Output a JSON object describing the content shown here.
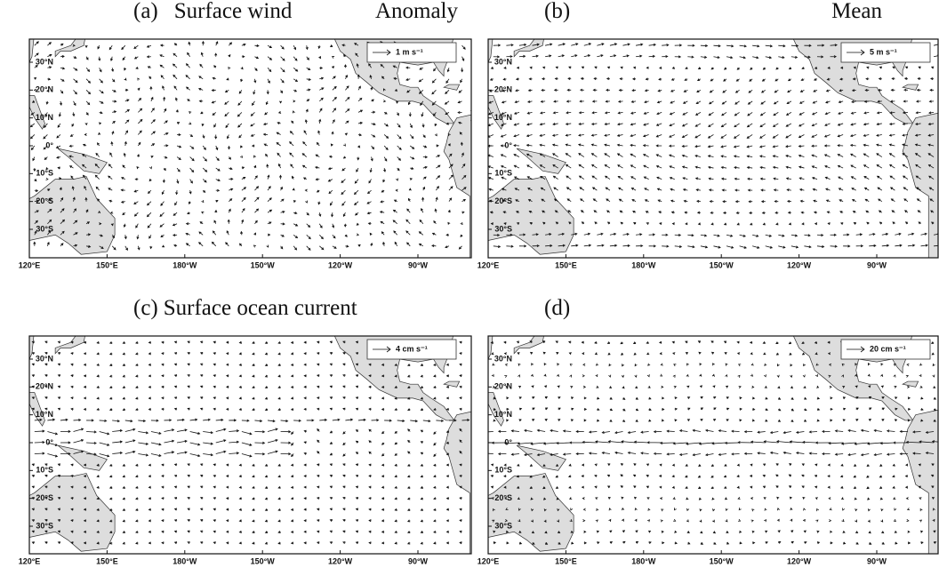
{
  "x_ticks": [
    "120°E",
    "150°E",
    "180°W",
    "150°W",
    "120°W",
    "90°W"
  ],
  "y_ticks": [
    "30°N",
    "20°N",
    "10°N",
    "0°",
    "10°S",
    "20°S",
    "30°S"
  ],
  "panels": [
    {
      "label": "(a)",
      "title": "Surface wind",
      "subtitle": "Anomaly",
      "reference": "1 m s⁻¹"
    },
    {
      "label": "(b)",
      "subtitle": "Mean",
      "reference": "5 m s⁻¹"
    },
    {
      "label": "(c)",
      "title": "Surface ocean current",
      "reference": "4 cm s⁻¹"
    },
    {
      "label": "(d)",
      "reference": "20 cm s⁻¹"
    }
  ]
}
